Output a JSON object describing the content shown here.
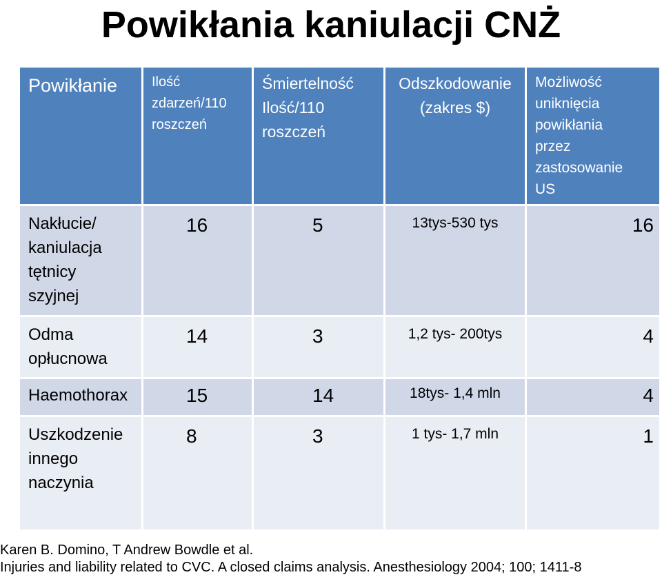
{
  "title": "Powikłania kaniulacji CNŻ",
  "table": {
    "headers": [
      [
        "Powikłanie"
      ],
      [
        "Ilość",
        "zdarzeń/110",
        "roszczeń"
      ],
      [
        "Śmiertelność",
        "Ilość/110",
        "roszczeń"
      ],
      [
        "Odszkodowanie",
        "(zakres $)"
      ],
      [
        "Możliwość",
        "uniknięcia",
        "powikłania",
        "przez",
        "zastosowanie",
        "US"
      ]
    ],
    "rows": [
      {
        "label": [
          "Nakłucie/",
          "kaniulacja",
          "tętnicy",
          "szyjnej"
        ],
        "events": "16",
        "mortality": "5",
        "compensation": "13tys-530 tys",
        "avoidable": "16"
      },
      {
        "label": [
          "Odma",
          "opłucnowa"
        ],
        "events": "14",
        "mortality": "3",
        "compensation": "1,2 tys- 200tys",
        "avoidable": "4"
      },
      {
        "label": [
          "Haemothorax"
        ],
        "events": "15",
        "mortality": "14",
        "compensation": "18tys- 1,4 mln",
        "avoidable": "4"
      },
      {
        "label": [
          "Uszkodzenie",
          "innego",
          "naczynia"
        ],
        "events": "8",
        "mortality": "3",
        "compensation": "1 tys- 1,7 mln",
        "avoidable": "1"
      }
    ]
  },
  "citation": {
    "authors": "Karen B. Domino, T Andrew Bowdle et al.",
    "reference": "Injuries and liability related to CVC. A closed claims analysis. Anesthesiology 2004; 100; 1411-8"
  },
  "colors": {
    "header_bg": "#4f81bd",
    "band_row_bg": "#d0d8e8",
    "plain_row_bg": "#e9edf4"
  }
}
